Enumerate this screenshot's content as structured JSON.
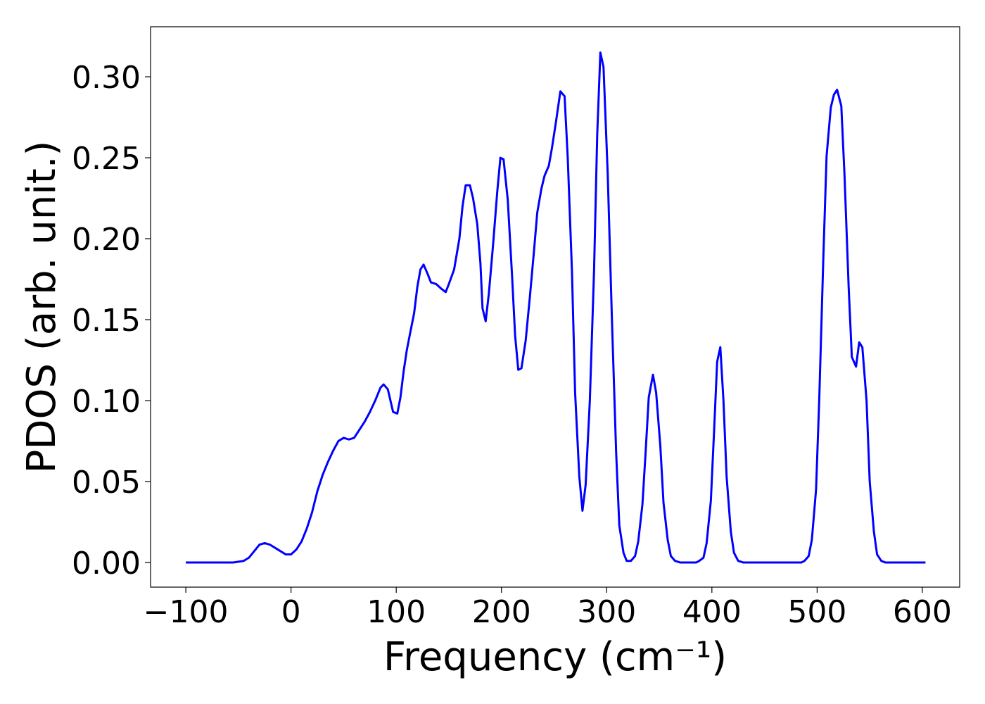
{
  "chart_data": {
    "type": "line",
    "xlabel": "Frequency (cm⁻¹)",
    "ylabel": "PDOS (arb. unit.)",
    "color": "#0000ff",
    "x": [
      -100,
      -55,
      -50,
      -45,
      -40,
      -35,
      -30,
      -25,
      -20,
      -15,
      -10,
      -5,
      0,
      5,
      10,
      15,
      20,
      25,
      30,
      35,
      40,
      45,
      50,
      55,
      60,
      65,
      70,
      75,
      80,
      85,
      88,
      92,
      97,
      101,
      104,
      107,
      110,
      113,
      117,
      120,
      123,
      126,
      130,
      133,
      138,
      143,
      147,
      150,
      155,
      160,
      163,
      166,
      170,
      173,
      177,
      180,
      182,
      185,
      188,
      192,
      196,
      199,
      202,
      206,
      210,
      213,
      216,
      219,
      223,
      227,
      231,
      234,
      238,
      241,
      245,
      248,
      252,
      256,
      260,
      263,
      267,
      270,
      274,
      277,
      280,
      284,
      288,
      291,
      294,
      297,
      301,
      305,
      309,
      312,
      316,
      319,
      323,
      327,
      330,
      334,
      337,
      340,
      344,
      347,
      351,
      354,
      358,
      361,
      365,
      370,
      385,
      388,
      392,
      395,
      399,
      402,
      405,
      408,
      411,
      414,
      418,
      421,
      425,
      430,
      485,
      488,
      492,
      495,
      499,
      502,
      506,
      509,
      513,
      516,
      519,
      523,
      526,
      530,
      533,
      537,
      540,
      543,
      547,
      550,
      554,
      557,
      561,
      565,
      603
    ],
    "values": [
      0,
      0,
      0.0005,
      0.001,
      0.003,
      0.007,
      0.011,
      0.012,
      0.011,
      0.009,
      0.007,
      0.005,
      0.005,
      0.008,
      0.013,
      0.021,
      0.031,
      0.044,
      0.054,
      0.062,
      0.069,
      0.075,
      0.077,
      0.076,
      0.077,
      0.082,
      0.087,
      0.093,
      0.1,
      0.108,
      0.11,
      0.107,
      0.093,
      0.092,
      0.102,
      0.118,
      0.131,
      0.141,
      0.154,
      0.17,
      0.181,
      0.184,
      0.178,
      0.173,
      0.172,
      0.169,
      0.167,
      0.172,
      0.181,
      0.2,
      0.22,
      0.233,
      0.233,
      0.225,
      0.209,
      0.185,
      0.157,
      0.149,
      0.166,
      0.196,
      0.229,
      0.25,
      0.249,
      0.224,
      0.178,
      0.14,
      0.119,
      0.12,
      0.137,
      0.164,
      0.193,
      0.216,
      0.231,
      0.239,
      0.245,
      0.256,
      0.273,
      0.291,
      0.288,
      0.25,
      0.18,
      0.105,
      0.053,
      0.032,
      0.048,
      0.1,
      0.18,
      0.264,
      0.315,
      0.306,
      0.24,
      0.15,
      0.068,
      0.023,
      0.006,
      0.001,
      0.001,
      0.004,
      0.013,
      0.036,
      0.068,
      0.102,
      0.116,
      0.105,
      0.072,
      0.037,
      0.014,
      0.004,
      0.001,
      0,
      0,
      0.001,
      0.003,
      0.012,
      0.038,
      0.08,
      0.124,
      0.133,
      0.1,
      0.053,
      0.019,
      0.006,
      0.001,
      0,
      0,
      0.001,
      0.004,
      0.014,
      0.045,
      0.1,
      0.19,
      0.251,
      0.281,
      0.289,
      0.292,
      0.282,
      0.24,
      0.17,
      0.127,
      0.121,
      0.136,
      0.133,
      0.1,
      0.05,
      0.019,
      0.005,
      0.001,
      0,
      0
    ],
    "xlim": [
      -133.5,
      635.5
    ],
    "ylim": [
      -0.0152,
      0.3309
    ],
    "xticks": [
      {
        "value": -100,
        "label": "−100"
      },
      0,
      100,
      200,
      300,
      400,
      500,
      600
    ],
    "yticks": [
      {
        "value": 0,
        "label": "0.00"
      },
      {
        "value": 0.05,
        "label": "0.05"
      },
      {
        "value": 0.1,
        "label": "0.10"
      },
      {
        "value": 0.15,
        "label": "0.15"
      },
      {
        "value": 0.2,
        "label": "0.20"
      },
      {
        "value": 0.25,
        "label": "0.25"
      },
      {
        "value": 0.3,
        "label": "0.30"
      }
    ],
    "grid": false
  }
}
